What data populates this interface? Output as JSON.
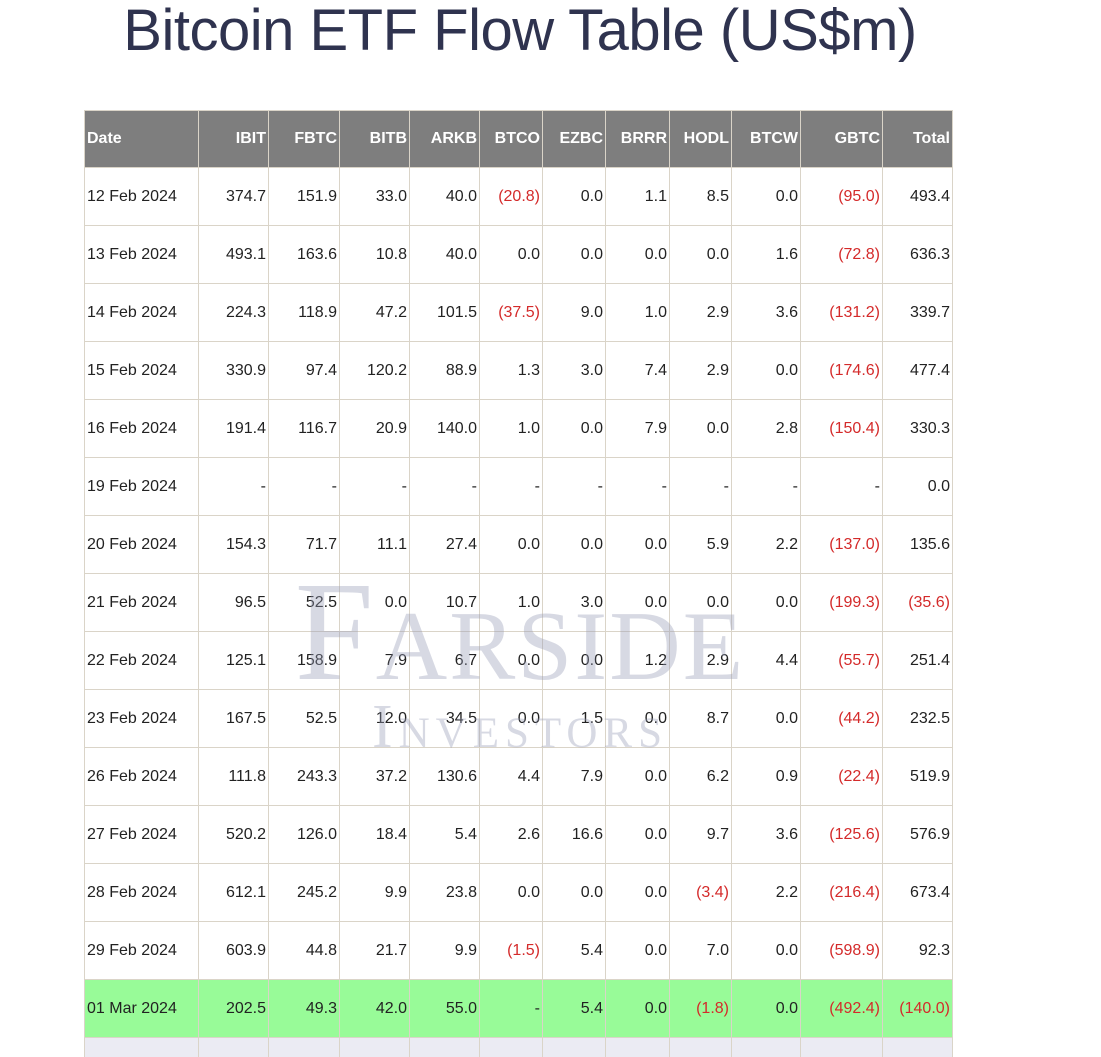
{
  "title": "Bitcoin ETF Flow Table (US$m)",
  "watermark": {
    "main": "Farside",
    "sub": "Investors"
  },
  "colors": {
    "header_bg": "#7e7e7e",
    "negative": "#d42a2a",
    "highlight_row": "#98fb98",
    "title": "#2f334f"
  },
  "chart_data": {
    "type": "table",
    "title": "Bitcoin ETF Flow Table (US$m)",
    "columns": [
      "Date",
      "IBIT",
      "FBTC",
      "BITB",
      "ARKB",
      "BTCO",
      "EZBC",
      "BRRR",
      "HODL",
      "BTCW",
      "GBTC",
      "Total"
    ],
    "rows": [
      [
        "12 Feb 2024",
        "374.7",
        "151.9",
        "33.0",
        "40.0",
        "(20.8)",
        "0.0",
        "1.1",
        "8.5",
        "0.0",
        "(95.0)",
        "493.4"
      ],
      [
        "13 Feb 2024",
        "493.1",
        "163.6",
        "10.8",
        "40.0",
        "0.0",
        "0.0",
        "0.0",
        "0.0",
        "1.6",
        "(72.8)",
        "636.3"
      ],
      [
        "14 Feb 2024",
        "224.3",
        "118.9",
        "47.2",
        "101.5",
        "(37.5)",
        "9.0",
        "1.0",
        "2.9",
        "3.6",
        "(131.2)",
        "339.7"
      ],
      [
        "15 Feb 2024",
        "330.9",
        "97.4",
        "120.2",
        "88.9",
        "1.3",
        "3.0",
        "7.4",
        "2.9",
        "0.0",
        "(174.6)",
        "477.4"
      ],
      [
        "16 Feb 2024",
        "191.4",
        "116.7",
        "20.9",
        "140.0",
        "1.0",
        "0.0",
        "7.9",
        "0.0",
        "2.8",
        "(150.4)",
        "330.3"
      ],
      [
        "19 Feb 2024",
        "-",
        "-",
        "-",
        "-",
        "-",
        "-",
        "-",
        "-",
        "-",
        "-",
        "0.0"
      ],
      [
        "20 Feb 2024",
        "154.3",
        "71.7",
        "11.1",
        "27.4",
        "0.0",
        "0.0",
        "0.0",
        "5.9",
        "2.2",
        "(137.0)",
        "135.6"
      ],
      [
        "21 Feb 2024",
        "96.5",
        "52.5",
        "0.0",
        "10.7",
        "1.0",
        "3.0",
        "0.0",
        "0.0",
        "0.0",
        "(199.3)",
        "(35.6)"
      ],
      [
        "22 Feb 2024",
        "125.1",
        "158.9",
        "7.9",
        "6.7",
        "0.0",
        "0.0",
        "1.2",
        "2.9",
        "4.4",
        "(55.7)",
        "251.4"
      ],
      [
        "23 Feb 2024",
        "167.5",
        "52.5",
        "12.0",
        "34.5",
        "0.0",
        "1.5",
        "0.0",
        "8.7",
        "0.0",
        "(44.2)",
        "232.5"
      ],
      [
        "26 Feb 2024",
        "111.8",
        "243.3",
        "37.2",
        "130.6",
        "4.4",
        "7.9",
        "0.0",
        "6.2",
        "0.9",
        "(22.4)",
        "519.9"
      ],
      [
        "27 Feb 2024",
        "520.2",
        "126.0",
        "18.4",
        "5.4",
        "2.6",
        "16.6",
        "0.0",
        "9.7",
        "3.6",
        "(125.6)",
        "576.9"
      ],
      [
        "28 Feb 2024",
        "612.1",
        "245.2",
        "9.9",
        "23.8",
        "0.0",
        "0.0",
        "0.0",
        "(3.4)",
        "2.2",
        "(216.4)",
        "673.4"
      ],
      [
        "29 Feb 2024",
        "603.9",
        "44.8",
        "21.7",
        "9.9",
        "(1.5)",
        "5.4",
        "0.0",
        "7.0",
        "0.0",
        "(598.9)",
        "92.3"
      ],
      [
        "01 Mar 2024",
        "202.5",
        "49.3",
        "42.0",
        "55.0",
        "-",
        "5.4",
        "0.0",
        "(1.8)",
        "0.0",
        "(492.4)",
        "(140.0)"
      ]
    ],
    "highlight_row_index": 14
  }
}
